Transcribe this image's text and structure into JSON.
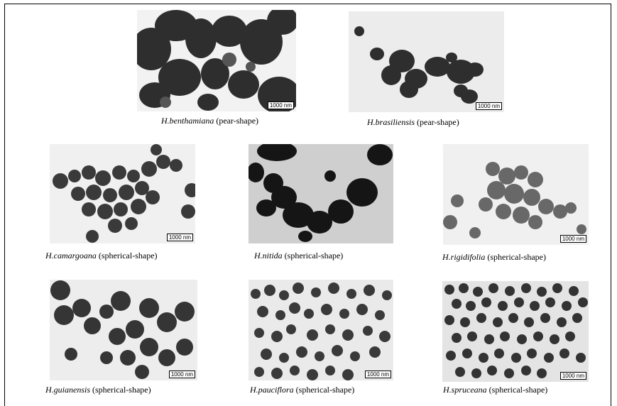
{
  "panels": [
    {
      "species": "H.benthamiana",
      "shape": "(pear-shape)",
      "scale": "1000 nm"
    },
    {
      "species": "H.brasiliensis",
      "shape": "(pear-shape)",
      "scale": "1000 nm"
    },
    {
      "species": "H.camargoana",
      "shape": "(spherical-shape)",
      "scale": "1000 nm"
    },
    {
      "species": "H.nitida",
      "shape": "(spherical-shape)",
      "scale": ""
    },
    {
      "species": "H.rigidifolia",
      "shape": "(spherical-shape)",
      "scale": "1000 nm"
    },
    {
      "species": "H.guianensis",
      "shape": "(spherical-shape)",
      "scale": "1000 nm"
    },
    {
      "species": "H.pauciflora",
      "shape": "(spherical-shape)",
      "scale": "1000 nm"
    },
    {
      "species": "H.spruceana",
      "shape": "(spherical-shape)",
      "scale": "1000 nm"
    }
  ]
}
